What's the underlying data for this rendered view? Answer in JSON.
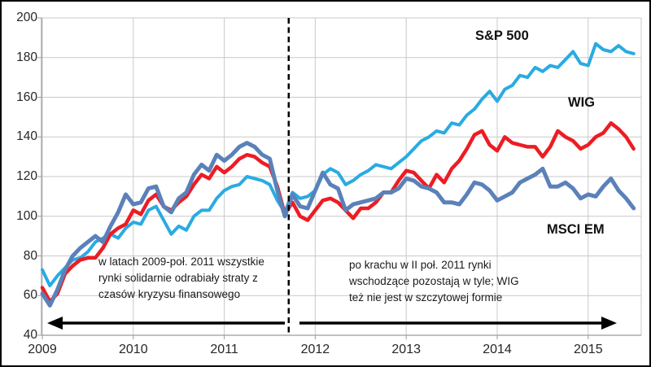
{
  "figure": {
    "background": "#FFFFFF",
    "border_color": "#000000",
    "gridline_color": "#C9C9C9",
    "axis_line_color": "#9B9B9B",
    "divider_color": "#000000",
    "arrow_color": "#000000"
  },
  "chart_data": {
    "type": "line",
    "title": "",
    "xlabel": "",
    "ylabel": "",
    "x_start": "2009-01",
    "x_step_months": 1,
    "x_tick_labels": [
      "2009",
      "2010",
      "2011",
      "2012",
      "2013",
      "2014",
      "2015"
    ],
    "y_ticks": [
      40,
      60,
      80,
      100,
      120,
      140,
      160,
      180,
      200
    ],
    "ylim": [
      40,
      200
    ],
    "grid": true,
    "legend": "direct-labels-on-chart",
    "series": [
      {
        "name": "S&P 500",
        "color": "#29ABE2",
        "stroke_width": 4,
        "values": [
          73,
          65,
          70,
          74,
          78,
          79,
          82,
          87,
          89,
          91,
          89,
          94,
          97,
          96,
          103,
          105,
          98,
          91,
          95,
          93,
          100,
          103,
          103,
          109,
          113,
          115,
          116,
          120,
          119,
          118,
          116,
          108,
          102,
          112,
          109,
          110,
          113,
          121,
          124,
          122,
          116,
          118,
          121,
          123,
          126,
          125,
          124,
          127,
          130,
          134,
          138,
          140,
          143,
          142,
          147,
          146,
          151,
          154,
          159,
          163,
          158,
          164,
          166,
          171,
          170,
          175,
          173,
          176,
          175,
          179,
          183,
          177,
          176,
          187,
          184,
          183,
          186,
          183,
          182
        ]
      },
      {
        "name": "WIG",
        "color": "#ED1C24",
        "stroke_width": 4.5,
        "values": [
          64,
          57,
          61,
          71,
          75,
          78,
          79,
          79,
          84,
          91,
          94,
          96,
          103,
          101,
          108,
          111,
          105,
          103,
          107,
          110,
          116,
          121,
          119,
          125,
          122,
          125,
          129,
          131,
          130,
          127,
          125,
          115,
          101,
          107,
          100,
          98,
          103,
          108,
          109,
          107,
          103,
          99,
          104,
          104,
          107,
          112,
          112,
          118,
          123,
          122,
          118,
          114,
          121,
          117,
          124,
          128,
          134,
          141,
          143,
          136,
          133,
          140,
          137,
          136,
          135,
          135,
          130,
          135,
          143,
          140,
          138,
          134,
          136,
          140,
          142,
          147,
          144,
          140,
          134
        ]
      },
      {
        "name": "MSCI EM",
        "color": "#5B81B9",
        "stroke_width": 5,
        "values": [
          61,
          55,
          63,
          73,
          80,
          84,
          87,
          90,
          87,
          95,
          102,
          111,
          106,
          107,
          114,
          115,
          105,
          102,
          109,
          112,
          121,
          126,
          123,
          131,
          128,
          131,
          135,
          137,
          135,
          131,
          129,
          113,
          100,
          111,
          105,
          104,
          113,
          122,
          116,
          114,
          103,
          106,
          107,
          108,
          109,
          112,
          112,
          114,
          119,
          118,
          115,
          114,
          112,
          107,
          107,
          106,
          111,
          117,
          116,
          113,
          108,
          110,
          112,
          117,
          119,
          121,
          124,
          115,
          115,
          117,
          114,
          109,
          111,
          110,
          115,
          119,
          113,
          109,
          104
        ]
      }
    ],
    "divider": {
      "style": "dashed-vertical-line",
      "month_index": 32.5,
      "date_approx": "2011-09",
      "color": "#000000"
    }
  },
  "annotations": {
    "left": {
      "line1": "w latach 2009-poł. 2011 wszystkie",
      "line2": "rynki solidarnie odrabiały straty z",
      "line3": "czasów kryzysu finansowego"
    },
    "right": {
      "line1": "po krachu w II poł. 2011 rynki",
      "line2": "wschodzące pozostają w tyle; WIG",
      "line3": "też nie jest w szczytowej formie"
    }
  }
}
